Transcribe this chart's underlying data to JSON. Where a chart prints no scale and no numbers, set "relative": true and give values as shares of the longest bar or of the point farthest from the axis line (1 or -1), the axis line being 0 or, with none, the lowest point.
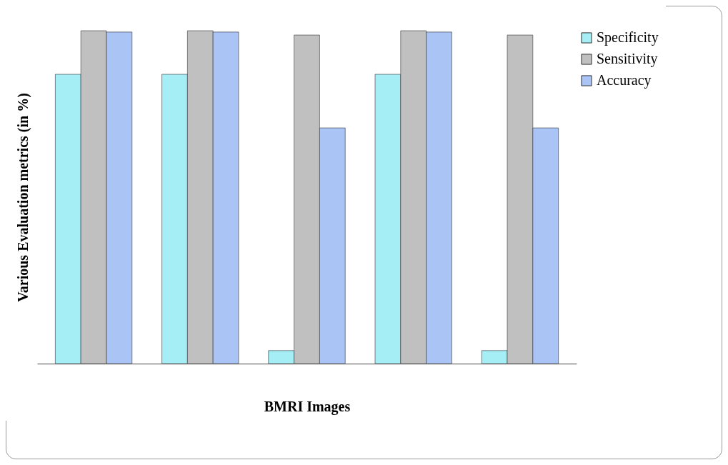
{
  "chart_data": {
    "type": "bar",
    "relative": true,
    "xlabel": "BMRI Images",
    "ylabel": "Various Evaluation metrics (in %)",
    "categories": [
      null,
      null,
      null,
      null,
      null
    ],
    "legend": "right",
    "series": [
      {
        "name": "Specificity",
        "color": "#a5eef5",
        "values": [
          0.869,
          0.869,
          0.039,
          0.869,
          0.039
        ]
      },
      {
        "name": "Sensitivity",
        "color": "#c0c0c0",
        "values": [
          1,
          1,
          0.987,
          1,
          0.987
        ]
      },
      {
        "name": "Accuracy",
        "color": "#a9c4f5",
        "values": [
          0.996,
          0.996,
          0.708,
          0.996,
          0.708
        ]
      }
    ]
  }
}
